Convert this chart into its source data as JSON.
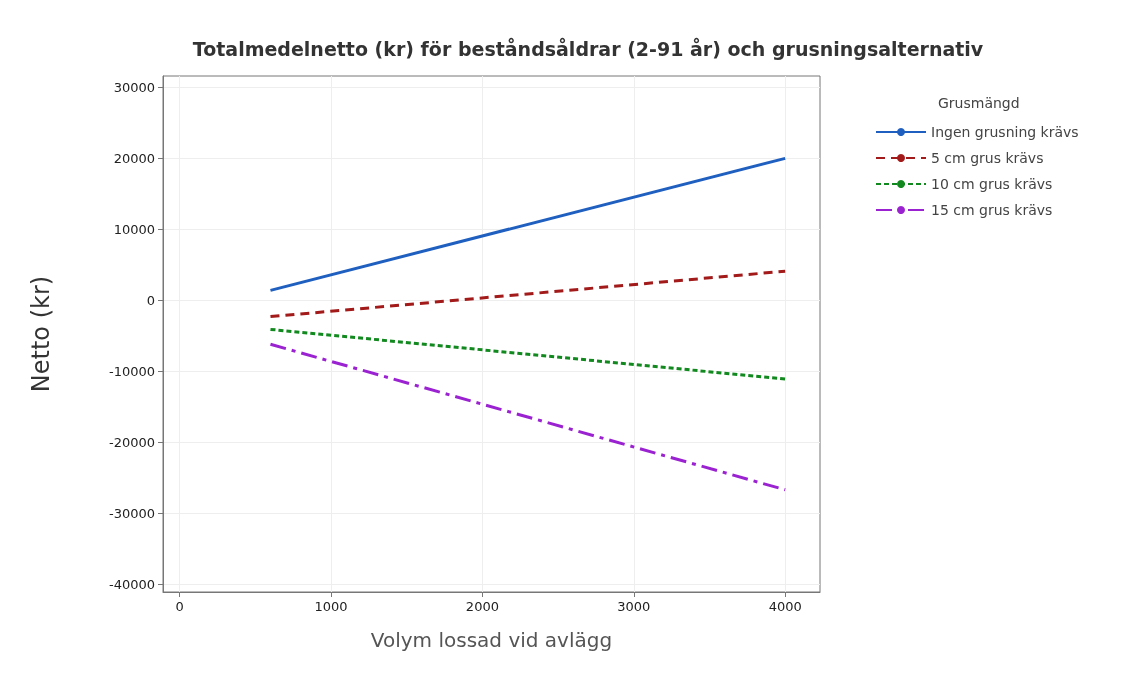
{
  "chart_data": {
    "type": "line",
    "title": "Totalmedelnetto (kr) för beståndsåldrar (2-91 år) och grusningsalternativ",
    "xlabel": "Volym lossad vid avlägg",
    "ylabel": "Netto (kr)",
    "legend_title": "Grusmängd",
    "legend": "right",
    "grid": true,
    "marker": "none",
    "x": [
      600,
      4000
    ],
    "series": [
      {
        "name": "Ingen grusning krävs",
        "color": "#1f5fbf",
        "line_style": "solid",
        "values": [
          1400,
          20000
        ]
      },
      {
        "name": "5 cm grus krävs",
        "color": "#a31a1a",
        "line_style": "dashed",
        "values": [
          -2300,
          4100
        ]
      },
      {
        "name": "10 cm grus krävs",
        "color": "#12891f",
        "line_style": "dotted",
        "values": [
          -4100,
          -11100
        ]
      },
      {
        "name": "15 cm grus krävs",
        "color": "#9b22d0",
        "line_style": "dashdot",
        "values": [
          -6200,
          -26700
        ]
      }
    ],
    "xlim": [
      -110,
      4230
    ],
    "xticks": [
      0,
      1000,
      2000,
      3000,
      4000
    ],
    "ylim": [
      -41100,
      31600
    ],
    "yticks": [
      -40000,
      -30000,
      -20000,
      -10000,
      0,
      10000,
      20000,
      30000
    ]
  }
}
